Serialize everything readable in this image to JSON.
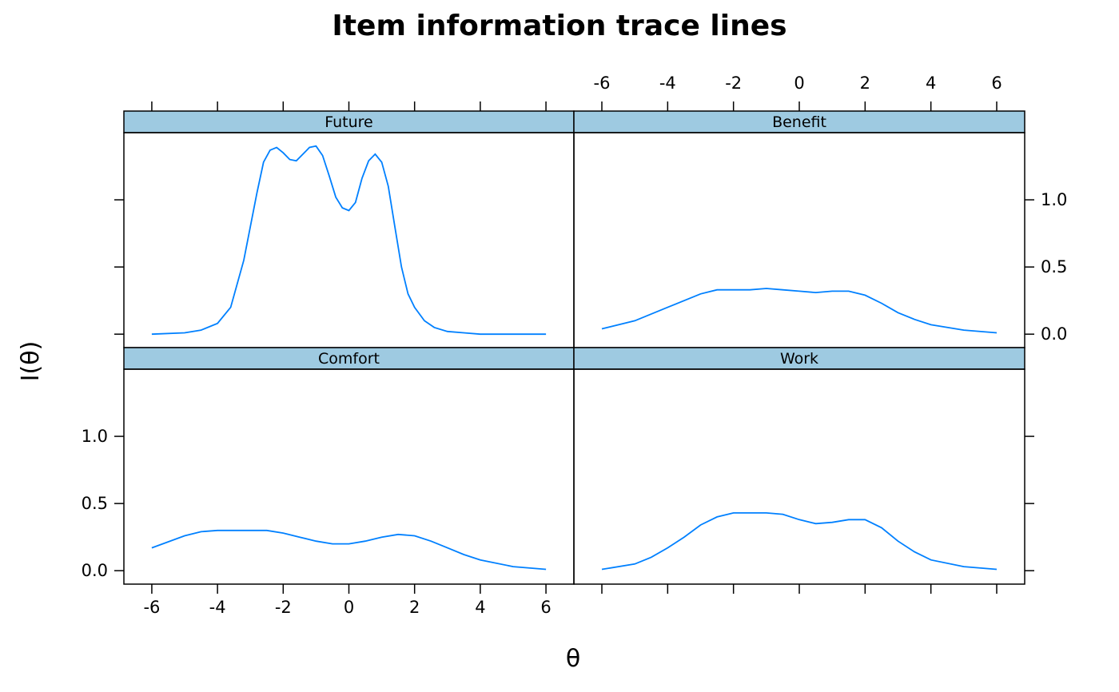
{
  "chart_data": {
    "type": "line",
    "layout": "2x2 trellis panels",
    "title": "Item information trace lines",
    "xlabel": "θ",
    "ylabel": "I(θ)",
    "xlim": [
      -6.85,
      6.85
    ],
    "ylim": [
      -0.1,
      1.5
    ],
    "x_ticks": [
      -6,
      -4,
      -2,
      0,
      2,
      4,
      6
    ],
    "x_tick_labels": [
      "-6",
      "-4",
      "-2",
      "0",
      "2",
      "4",
      "6"
    ],
    "y_ticks": [
      0.0,
      0.5,
      1.0
    ],
    "y_tick_labels": [
      "0.0",
      "0.5",
      "1.0"
    ],
    "strip_color": "#9ecae1",
    "line_color": "#0080ff",
    "panels": [
      {
        "name": "Future",
        "x": [
          -6,
          -5,
          -4.5,
          -4,
          -3.6,
          -3.2,
          -2.8,
          -2.6,
          -2.4,
          -2.2,
          -2.0,
          -1.8,
          -1.6,
          -1.4,
          -1.2,
          -1.0,
          -0.8,
          -0.6,
          -0.4,
          -0.2,
          0,
          0.2,
          0.4,
          0.6,
          0.8,
          1.0,
          1.2,
          1.4,
          1.6,
          1.8,
          2.0,
          2.3,
          2.6,
          3.0,
          3.5,
          4,
          5,
          6
        ],
        "y": [
          0.0,
          0.01,
          0.03,
          0.08,
          0.2,
          0.55,
          1.05,
          1.28,
          1.37,
          1.39,
          1.35,
          1.3,
          1.29,
          1.34,
          1.39,
          1.4,
          1.33,
          1.18,
          1.02,
          0.94,
          0.92,
          0.98,
          1.16,
          1.29,
          1.34,
          1.28,
          1.1,
          0.8,
          0.5,
          0.3,
          0.2,
          0.1,
          0.05,
          0.02,
          0.01,
          0.0,
          0.0,
          0.0
        ]
      },
      {
        "name": "Benefit",
        "x": [
          -6,
          -5,
          -4,
          -3,
          -2.5,
          -2,
          -1.5,
          -1,
          -0.5,
          0,
          0.5,
          1,
          1.5,
          2,
          2.5,
          3,
          3.5,
          4,
          5,
          6
        ],
        "y": [
          0.04,
          0.1,
          0.2,
          0.3,
          0.33,
          0.33,
          0.33,
          0.34,
          0.33,
          0.32,
          0.31,
          0.32,
          0.32,
          0.29,
          0.23,
          0.16,
          0.11,
          0.07,
          0.03,
          0.01
        ]
      },
      {
        "name": "Comfort",
        "x": [
          -6,
          -5,
          -4.5,
          -4,
          -3.5,
          -3,
          -2.5,
          -2,
          -1.5,
          -1,
          -0.5,
          0,
          0.5,
          1,
          1.5,
          2,
          2.5,
          3,
          3.5,
          4,
          5,
          6
        ],
        "y": [
          0.17,
          0.26,
          0.29,
          0.3,
          0.3,
          0.3,
          0.3,
          0.28,
          0.25,
          0.22,
          0.2,
          0.2,
          0.22,
          0.25,
          0.27,
          0.26,
          0.22,
          0.17,
          0.12,
          0.08,
          0.03,
          0.01
        ]
      },
      {
        "name": "Work",
        "x": [
          -6,
          -5,
          -4.5,
          -4,
          -3.5,
          -3,
          -2.5,
          -2,
          -1.5,
          -1,
          -0.5,
          0,
          0.5,
          1,
          1.5,
          2,
          2.5,
          3,
          3.5,
          4,
          5,
          6
        ],
        "y": [
          0.01,
          0.05,
          0.1,
          0.17,
          0.25,
          0.34,
          0.4,
          0.43,
          0.43,
          0.43,
          0.42,
          0.38,
          0.35,
          0.36,
          0.38,
          0.38,
          0.32,
          0.22,
          0.14,
          0.08,
          0.03,
          0.01
        ]
      }
    ]
  }
}
